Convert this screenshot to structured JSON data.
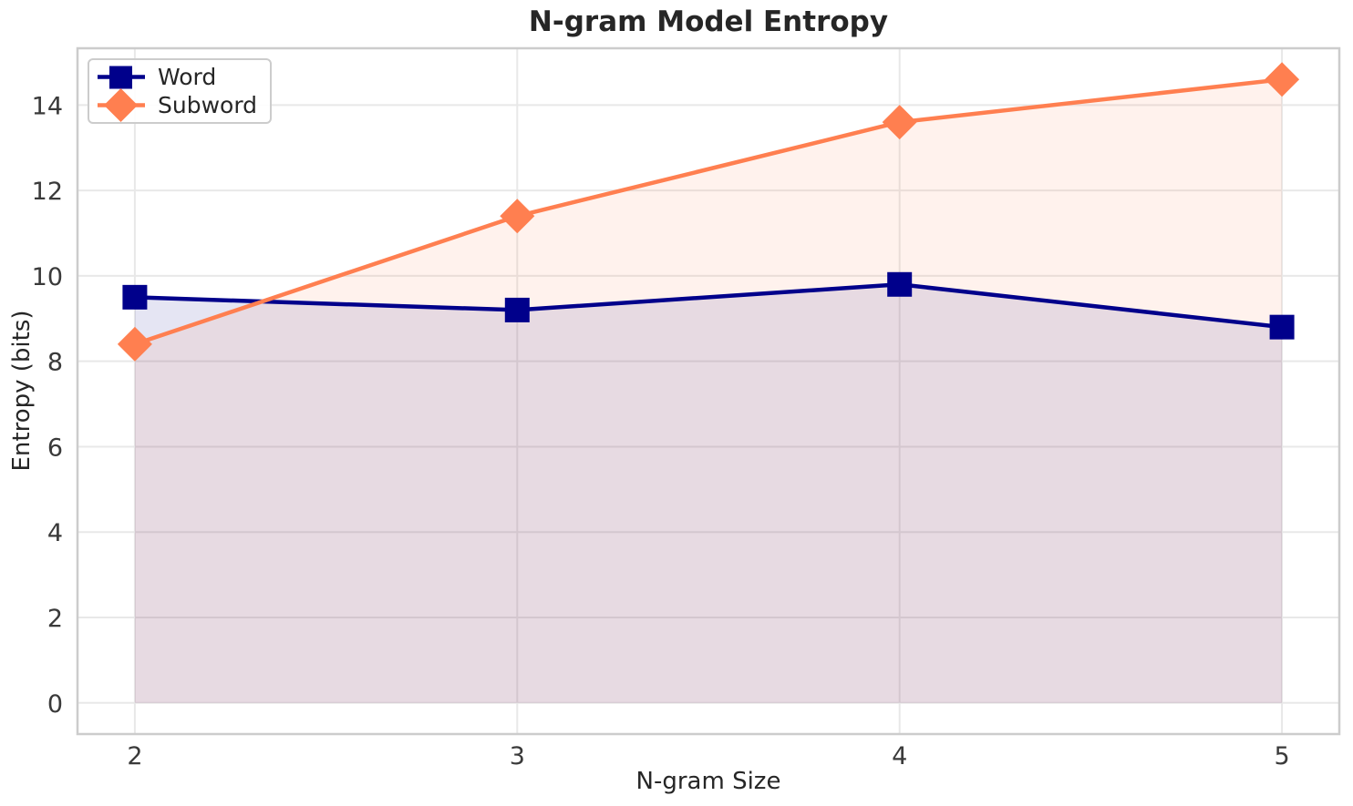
{
  "chart_data": {
    "type": "line",
    "title": "N-gram Model Entropy",
    "xlabel": "N-gram Size",
    "ylabel": "Entropy (bits)",
    "x": [
      2,
      3,
      4,
      5
    ],
    "series": [
      {
        "name": "Word",
        "values": [
          9.5,
          9.2,
          9.8,
          8.8
        ],
        "color": "#00008B",
        "marker": "square",
        "fill_to_zero": true,
        "fill_alpha": 0.1
      },
      {
        "name": "Subword",
        "values": [
          8.4,
          11.4,
          13.6,
          14.6
        ],
        "color": "#FF7F50",
        "marker": "diamond",
        "fill_to_zero": true,
        "fill_alpha": 0.1
      }
    ],
    "xticks": [
      2,
      3,
      4,
      5
    ],
    "xtick_labels": [
      "2",
      "3",
      "4",
      "5"
    ],
    "yticks": [
      0,
      2,
      4,
      6,
      8,
      10,
      12,
      14
    ],
    "ytick_labels": [
      "0",
      "2",
      "4",
      "6",
      "8",
      "10",
      "12",
      "14"
    ],
    "xlim": [
      1.85,
      5.15
    ],
    "ylim": [
      -0.73,
      15.33
    ],
    "grid": true,
    "legend_position": "upper-left"
  },
  "colors": {
    "background": "#ffffff",
    "grid": "#e8e8e8",
    "spine": "#cccccc",
    "tick_text": "#3a3a3a",
    "label_text": "#262626",
    "title_text": "#262626"
  }
}
